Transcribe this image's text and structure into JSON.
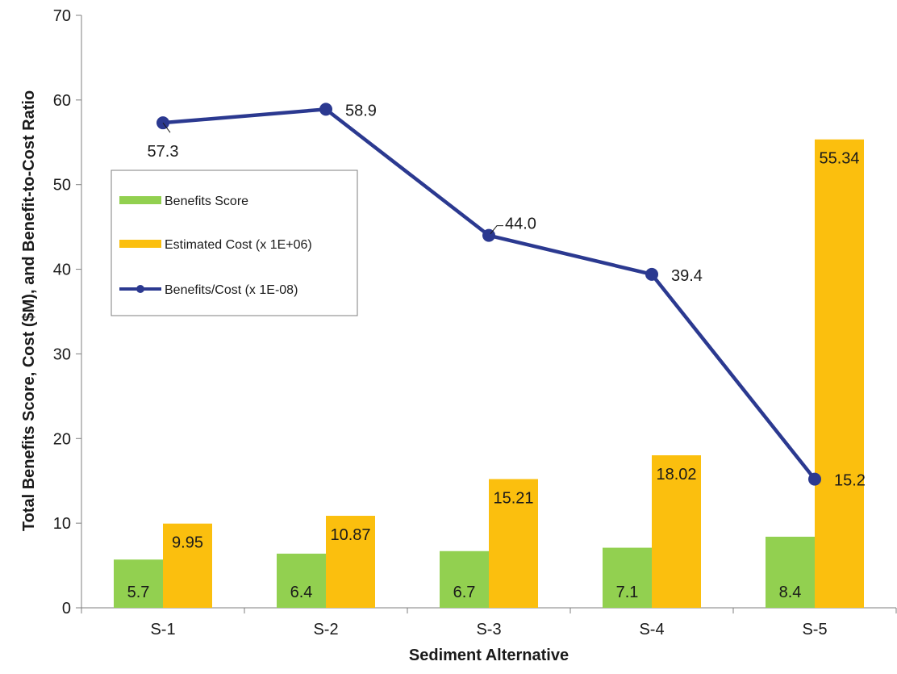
{
  "chart_data": {
    "type": "bar",
    "categories": [
      "S-1",
      "S-2",
      "S-3",
      "S-4",
      "S-5"
    ],
    "series": [
      {
        "name": "Benefits Score",
        "kind": "bar",
        "color": "#92d050",
        "values": [
          5.7,
          6.4,
          6.7,
          7.1,
          8.4
        ],
        "labels": [
          "5.7",
          "6.4",
          "6.7",
          "7.1",
          "8.4"
        ]
      },
      {
        "name": "Estimated Cost (x 1E+06)",
        "kind": "bar",
        "color": "#fbbf0e",
        "values": [
          9.95,
          10.87,
          15.21,
          18.02,
          55.34
        ],
        "labels": [
          "9.95",
          "10.87",
          "15.21",
          "18.02",
          "55.34"
        ]
      },
      {
        "name": "Benefits/Cost (x 1E-08)",
        "kind": "line",
        "color": "#2b3990",
        "values": [
          57.3,
          58.9,
          44.0,
          39.4,
          15.2
        ],
        "labels": [
          "57.3",
          "58.9",
          "44.0",
          "39.4",
          "15.2"
        ]
      }
    ],
    "xlabel": "Sediment Alternative",
    "ylabel": "Total Benefits Score, Cost ($M), and Benefit-to-Cost Ratio",
    "ylim": [
      0,
      70
    ],
    "yticks": [
      "0",
      "10",
      "20",
      "30",
      "40",
      "50",
      "60",
      "70"
    ],
    "grid": false,
    "legend_position": "left"
  }
}
